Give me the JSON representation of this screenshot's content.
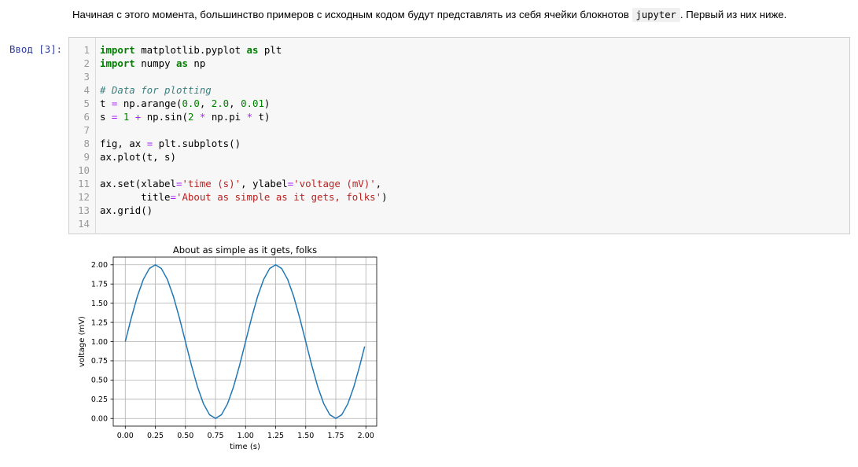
{
  "intro": {
    "before": "Начиная с этого момента, большинство примеров с исходным кодом будут представлять из себя ячейки блокнотов",
    "code": "jupyter",
    "after": ". Первый из них ниже."
  },
  "cell": {
    "prompt": "Ввод [3]:",
    "lines": [
      [
        {
          "t": "import",
          "c": "kw"
        },
        {
          "t": " matplotlib.pyplot "
        },
        {
          "t": "as",
          "c": "kw"
        },
        {
          "t": " plt"
        }
      ],
      [
        {
          "t": "import",
          "c": "kw"
        },
        {
          "t": " numpy "
        },
        {
          "t": "as",
          "c": "kw"
        },
        {
          "t": " np"
        }
      ],
      [],
      [
        {
          "t": "# Data for plotting",
          "c": "cm"
        }
      ],
      [
        {
          "t": "t "
        },
        {
          "t": "=",
          "c": "op"
        },
        {
          "t": " np.arange("
        },
        {
          "t": "0.0",
          "c": "nm"
        },
        {
          "t": ", "
        },
        {
          "t": "2.0",
          "c": "nm"
        },
        {
          "t": ", "
        },
        {
          "t": "0.01",
          "c": "nm"
        },
        {
          "t": ")"
        }
      ],
      [
        {
          "t": "s "
        },
        {
          "t": "=",
          "c": "op"
        },
        {
          "t": " "
        },
        {
          "t": "1",
          "c": "nm"
        },
        {
          "t": " "
        },
        {
          "t": "+",
          "c": "op"
        },
        {
          "t": " np.sin("
        },
        {
          "t": "2",
          "c": "nm"
        },
        {
          "t": " "
        },
        {
          "t": "*",
          "c": "op"
        },
        {
          "t": " np.pi "
        },
        {
          "t": "*",
          "c": "op"
        },
        {
          "t": " t)"
        }
      ],
      [],
      [
        {
          "t": "fig, ax "
        },
        {
          "t": "=",
          "c": "op"
        },
        {
          "t": " plt.subplots()"
        }
      ],
      [
        {
          "t": "ax.plot(t, s)"
        }
      ],
      [],
      [
        {
          "t": "ax.set(xlabel"
        },
        {
          "t": "=",
          "c": "op"
        },
        {
          "t": "'time (s)'",
          "c": "st"
        },
        {
          "t": ", ylabel"
        },
        {
          "t": "=",
          "c": "op"
        },
        {
          "t": "'voltage (mV)'",
          "c": "st"
        },
        {
          "t": ","
        }
      ],
      [
        {
          "t": "       title"
        },
        {
          "t": "=",
          "c": "op"
        },
        {
          "t": "'About as simple as it gets, folks'",
          "c": "st"
        },
        {
          "t": ")"
        }
      ],
      [
        {
          "t": "ax.grid()"
        }
      ],
      []
    ]
  },
  "chart_data": {
    "type": "line",
    "title": "About as simple as it gets, folks",
    "xlabel": "time (s)",
    "ylabel": "voltage (mV)",
    "xlim": [
      -0.1,
      2.09
    ],
    "ylim": [
      -0.1,
      2.1
    ],
    "xticks": [
      "0.00",
      "0.25",
      "0.50",
      "0.75",
      "1.00",
      "1.25",
      "1.50",
      "1.75",
      "2.00"
    ],
    "yticks": [
      "0.00",
      "0.25",
      "0.50",
      "0.75",
      "1.00",
      "1.25",
      "1.50",
      "1.75",
      "2.00"
    ],
    "grid": true,
    "series": [
      {
        "color": "#1f77b4",
        "x": [
          0.0,
          0.05,
          0.1,
          0.15,
          0.2,
          0.25,
          0.3,
          0.35,
          0.4,
          0.45,
          0.5,
          0.55,
          0.6,
          0.65,
          0.7,
          0.75,
          0.8,
          0.85,
          0.9,
          0.95,
          1.0,
          1.05,
          1.1,
          1.15,
          1.2,
          1.25,
          1.3,
          1.35,
          1.4,
          1.45,
          1.5,
          1.55,
          1.6,
          1.65,
          1.7,
          1.75,
          1.8,
          1.85,
          1.9,
          1.95,
          1.99
        ],
        "y": [
          1.0,
          1.309,
          1.588,
          1.809,
          1.951,
          2.0,
          1.951,
          1.809,
          1.588,
          1.309,
          1.0,
          0.691,
          0.412,
          0.191,
          0.049,
          0.0,
          0.049,
          0.191,
          0.412,
          0.691,
          1.0,
          1.309,
          1.588,
          1.809,
          1.951,
          2.0,
          1.951,
          1.809,
          1.588,
          1.309,
          1.0,
          0.691,
          0.412,
          0.191,
          0.049,
          0.0,
          0.049,
          0.191,
          0.412,
          0.691,
          0.937
        ]
      }
    ]
  }
}
